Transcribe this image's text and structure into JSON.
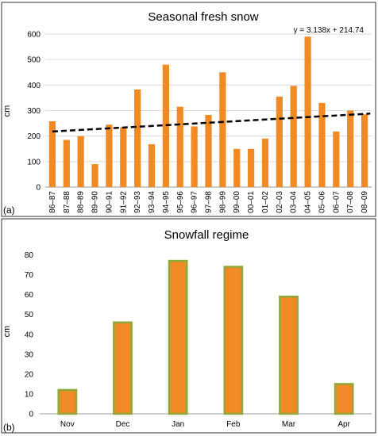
{
  "chart_data": [
    {
      "type": "bar",
      "panel_label": "(a)",
      "title": "Seasonal fresh snow",
      "ylabel": "cm",
      "ylim": [
        0,
        600
      ],
      "yticks": [
        0,
        100,
        200,
        300,
        400,
        500,
        600
      ],
      "grid": "horizontal",
      "bar_color": "#f08a24",
      "categories": [
        "86–87",
        "87–88",
        "88–89",
        "89–90",
        "90–91",
        "91–92",
        "92–93",
        "93–94",
        "94–95",
        "95–96",
        "96–97",
        "97–98",
        "98–99",
        "99–00",
        "00–01",
        "01–02",
        "02–03",
        "03–04",
        "04–05",
        "05–06",
        "06–07",
        "07–08",
        "08–09"
      ],
      "values": [
        258,
        185,
        200,
        90,
        245,
        235,
        383,
        168,
        480,
        315,
        238,
        283,
        450,
        150,
        150,
        190,
        355,
        397,
        590,
        330,
        218,
        300,
        285
      ],
      "trendline": {
        "equation": "y = 3.138x + 214.74",
        "slope": 3.138,
        "intercept": 214.74,
        "style": "dashed",
        "color": "#000000"
      }
    },
    {
      "type": "bar",
      "panel_label": "(b)",
      "title": "Snowfall regime",
      "ylabel": "cm",
      "ylim": [
        0,
        85
      ],
      "yticks": [
        0,
        10,
        20,
        30,
        40,
        50,
        60,
        70,
        80
      ],
      "grid": "none",
      "bar_color": "#f08a24",
      "bar_edge_color": "#8fa83a",
      "categories": [
        "Nov",
        "Dec",
        "Jan",
        "Feb",
        "Mar",
        "Apr"
      ],
      "values": [
        12,
        46,
        77,
        74,
        59,
        15
      ]
    }
  ]
}
